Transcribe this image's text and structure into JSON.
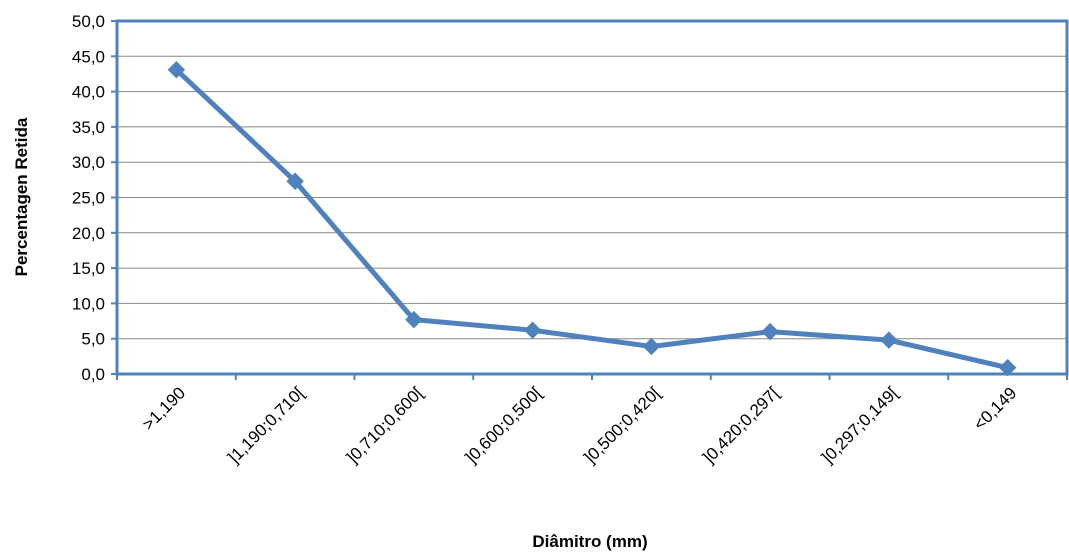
{
  "chart_data": {
    "type": "line",
    "title": "",
    "xlabel": "Diâmitro (mm)",
    "ylabel": "Percentagen Retida",
    "categories": [
      ">1,190",
      "]1,190;0,710[",
      "]0,710;0,600[",
      "]0,600;0,500[",
      "]0,500;0,420[",
      "]0,420;0,297[",
      "]0,297;0,149[",
      "<0,149"
    ],
    "yticks": [
      "0,0",
      "5,0",
      "10,0",
      "15,0",
      "20,0",
      "25,0",
      "30,0",
      "35,0",
      "40,0",
      "45,0",
      "50,0"
    ],
    "ylim": [
      0,
      50
    ],
    "grid": true,
    "legend": "none",
    "series": [
      {
        "values": [
          43.1,
          27.3,
          7.7,
          6.2,
          3.9,
          6.0,
          4.8,
          0.9
        ],
        "color": "#4f81bd",
        "marker": "diamond"
      }
    ],
    "colors": {
      "axis_frame": "#4f81bd",
      "gridline": "#878787"
    }
  }
}
